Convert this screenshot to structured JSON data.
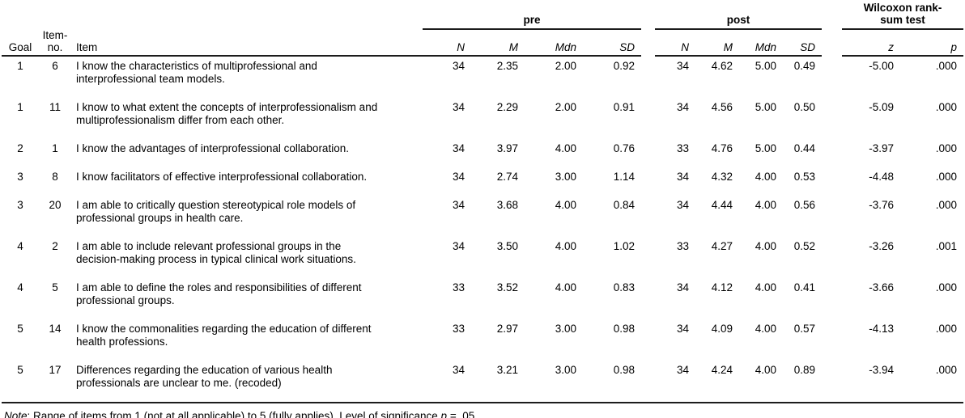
{
  "table": {
    "spanners": {
      "pre": "pre",
      "post": "post",
      "wilcoxon": "Wilcoxon rank-\nsum test"
    },
    "col_headers": {
      "goal": "Goal",
      "item_no": "Item-\nno.",
      "item": "Item",
      "n": "N",
      "m": "M",
      "mdn": "Mdn",
      "sd": "SD",
      "z": "z",
      "p": "p"
    },
    "rows": [
      {
        "goal": "1",
        "item_no": "6",
        "item": "I know the characteristics of multiprofessional and\ninterprofessional team models.",
        "pre": {
          "n": "34",
          "m": "2.35",
          "mdn": "2.00",
          "sd": "0.92"
        },
        "post": {
          "n": "34",
          "m": "4.62",
          "mdn": "5.00",
          "sd": "0.49"
        },
        "z": "-5.00",
        "p": ".000"
      },
      {
        "goal": "1",
        "item_no": "11",
        "item": "I know to what extent the concepts of interprofessionalism and\nmultiprofessionalism differ from each other.",
        "pre": {
          "n": "34",
          "m": "2.29",
          "mdn": "2.00",
          "sd": "0.91"
        },
        "post": {
          "n": "34",
          "m": "4.56",
          "mdn": "5.00",
          "sd": "0.50"
        },
        "z": "-5.09",
        "p": ".000"
      },
      {
        "goal": "2",
        "item_no": "1",
        "item": "I know the advantages of interprofessional collaboration.",
        "pre": {
          "n": "34",
          "m": "3.97",
          "mdn": "4.00",
          "sd": "0.76"
        },
        "post": {
          "n": "33",
          "m": "4.76",
          "mdn": "5.00",
          "sd": "0.44"
        },
        "z": "-3.97",
        "p": ".000"
      },
      {
        "goal": "3",
        "item_no": "8",
        "item": "I know facilitators of effective interprofessional collaboration.",
        "pre": {
          "n": "34",
          "m": "2.74",
          "mdn": "3.00",
          "sd": "1.14"
        },
        "post": {
          "n": "34",
          "m": "4.32",
          "mdn": "4.00",
          "sd": "0.53"
        },
        "z": "-4.48",
        "p": ".000"
      },
      {
        "goal": "3",
        "item_no": "20",
        "item": "I am able to critically question stereotypical role models of\nprofessional groups in health care.",
        "pre": {
          "n": "34",
          "m": "3.68",
          "mdn": "4.00",
          "sd": "0.84"
        },
        "post": {
          "n": "34",
          "m": "4.44",
          "mdn": "4.00",
          "sd": "0.56"
        },
        "z": "-3.76",
        "p": ".000"
      },
      {
        "goal": "4",
        "item_no": "2",
        "item": "I am able to include relevant professional groups in the\ndecision-making process in typical clinical work situations.",
        "pre": {
          "n": "34",
          "m": "3.50",
          "mdn": "4.00",
          "sd": "1.02"
        },
        "post": {
          "n": "33",
          "m": "4.27",
          "mdn": "4.00",
          "sd": "0.52"
        },
        "z": "-3.26",
        "p": ".001"
      },
      {
        "goal": "4",
        "item_no": "5",
        "item": "I am able to define the roles and responsibilities of different\nprofessional groups.",
        "pre": {
          "n": "33",
          "m": "3.52",
          "mdn": "4.00",
          "sd": "0.83"
        },
        "post": {
          "n": "34",
          "m": "4.12",
          "mdn": "4.00",
          "sd": "0.41"
        },
        "z": "-3.66",
        "p": ".000"
      },
      {
        "goal": "5",
        "item_no": "14",
        "item": "I know the commonalities regarding the education of different\nhealth professions.",
        "pre": {
          "n": "33",
          "m": "2.97",
          "mdn": "3.00",
          "sd": "0.98"
        },
        "post": {
          "n": "34",
          "m": "4.09",
          "mdn": "4.00",
          "sd": "0.57"
        },
        "z": "-4.13",
        "p": ".000"
      },
      {
        "goal": "5",
        "item_no": "17",
        "item": "Differences regarding the education of various health\nprofessionals are unclear to me. (recoded)",
        "pre": {
          "n": "34",
          "m": "3.21",
          "mdn": "3.00",
          "sd": "0.98"
        },
        "post": {
          "n": "34",
          "m": "4.24",
          "mdn": "4.00",
          "sd": "0.89"
        },
        "z": "-3.94",
        "p": ".000"
      }
    ]
  },
  "note": {
    "label": "Note",
    "text_main": ": Range of items from 1 (not at all applicable) to 5 (fully applies). Level of significance ",
    "p_symbol": "p",
    "text_end": " = .05"
  }
}
